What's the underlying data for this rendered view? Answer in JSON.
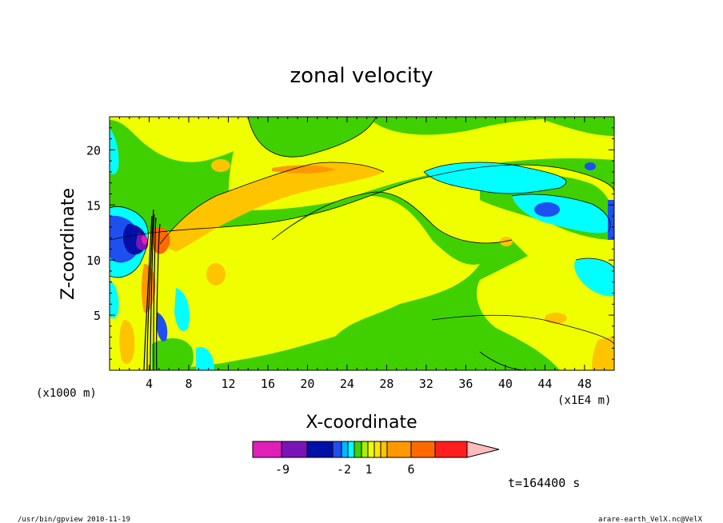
{
  "chart_data": {
    "type": "heatmap",
    "title": "zonal velocity",
    "xlabel": "X-coordinate",
    "ylabel": "Z-coordinate",
    "x_scale_note": "(x1E4 m)",
    "y_scale_note": "(x1000 m)",
    "xlim": [
      0,
      51
    ],
    "ylim": [
      0,
      23
    ],
    "x_ticks": [
      "4",
      "8",
      "12",
      "16",
      "20",
      "24",
      "28",
      "32",
      "36",
      "40",
      "44",
      "48"
    ],
    "y_ticks": [
      "5",
      "10",
      "15",
      "20"
    ],
    "colorbar": {
      "labels": [
        "-9",
        "-2",
        "1",
        "6"
      ],
      "colors": [
        "#e01fb8",
        "#7a14b8",
        "#0010a8",
        "#1e50f0",
        "#00b8ff",
        "#00ffff",
        "#40d000",
        "#a8f000",
        "#f0ff00",
        "#ffe400",
        "#ffc400",
        "#ff9800",
        "#ff6a00",
        "#ff1e1e",
        "#ff8080",
        "#ffbcbc"
      ]
    },
    "grid": false
  },
  "annotations": {
    "time": "t=164400 s",
    "footer_left": "/usr/bin/gpview  2010-11-19",
    "footer_right": "arare-earth_VelX.nc@VelX"
  }
}
